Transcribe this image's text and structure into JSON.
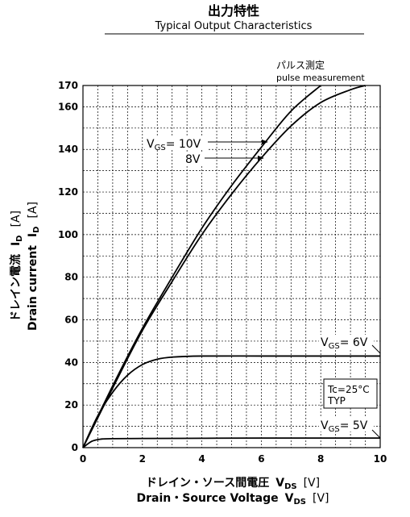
{
  "chart_data": {
    "type": "line",
    "title": "出力特性",
    "subtitle": "Typical Output Characteristics",
    "xlabel_jp": "ドレイン・ソース間電圧",
    "xlabel_en": "Drain・Source Voltage",
    "x_symbol": "V",
    "x_symbol_sub": "DS",
    "x_unit": "[V]",
    "ylabel_jp": "ドレイン電流",
    "ylabel_en": "Drain current",
    "y_symbol": "I",
    "y_symbol_sub": "D",
    "y_unit": "[A]",
    "xlim": [
      0,
      10
    ],
    "ylim": [
      0,
      170
    ],
    "x_ticks": [
      0,
      2,
      4,
      6,
      8,
      10
    ],
    "y_ticks": [
      0,
      20,
      40,
      60,
      80,
      100,
      120,
      140,
      160,
      170
    ],
    "grid": true,
    "grid_style": "dashed",
    "annotation_pulse_jp": "パルス測定",
    "annotation_pulse_en": "pulse measurement",
    "condition": "Tc=25°C",
    "condition_type": "TYP",
    "series": [
      {
        "label": "VGS= 10V",
        "x": [
          0,
          1,
          2,
          3,
          4,
          5,
          6,
          7,
          8
        ],
        "y": [
          0,
          29,
          56,
          80,
          103,
          123,
          141,
          158,
          170
        ]
      },
      {
        "label": "8V",
        "x": [
          0,
          1,
          2,
          3,
          4,
          5,
          6,
          7,
          8,
          9,
          9.5
        ],
        "y": [
          0,
          28,
          55,
          78,
          100,
          119,
          136,
          151,
          162,
          168,
          170
        ]
      },
      {
        "label": "VGS= 6V",
        "x": [
          0,
          0.5,
          1,
          1.5,
          2,
          2.5,
          3,
          4,
          6,
          8,
          10
        ],
        "y": [
          0,
          15,
          26,
          34,
          39,
          41.5,
          42.5,
          43,
          43,
          43,
          43
        ]
      },
      {
        "label": "VGS= 5V",
        "x": [
          0,
          0.3,
          0.6,
          1,
          2,
          4,
          6,
          8,
          10
        ],
        "y": [
          0,
          3,
          4,
          4.2,
          4.3,
          4.4,
          4.5,
          4.5,
          4.5
        ]
      }
    ]
  }
}
